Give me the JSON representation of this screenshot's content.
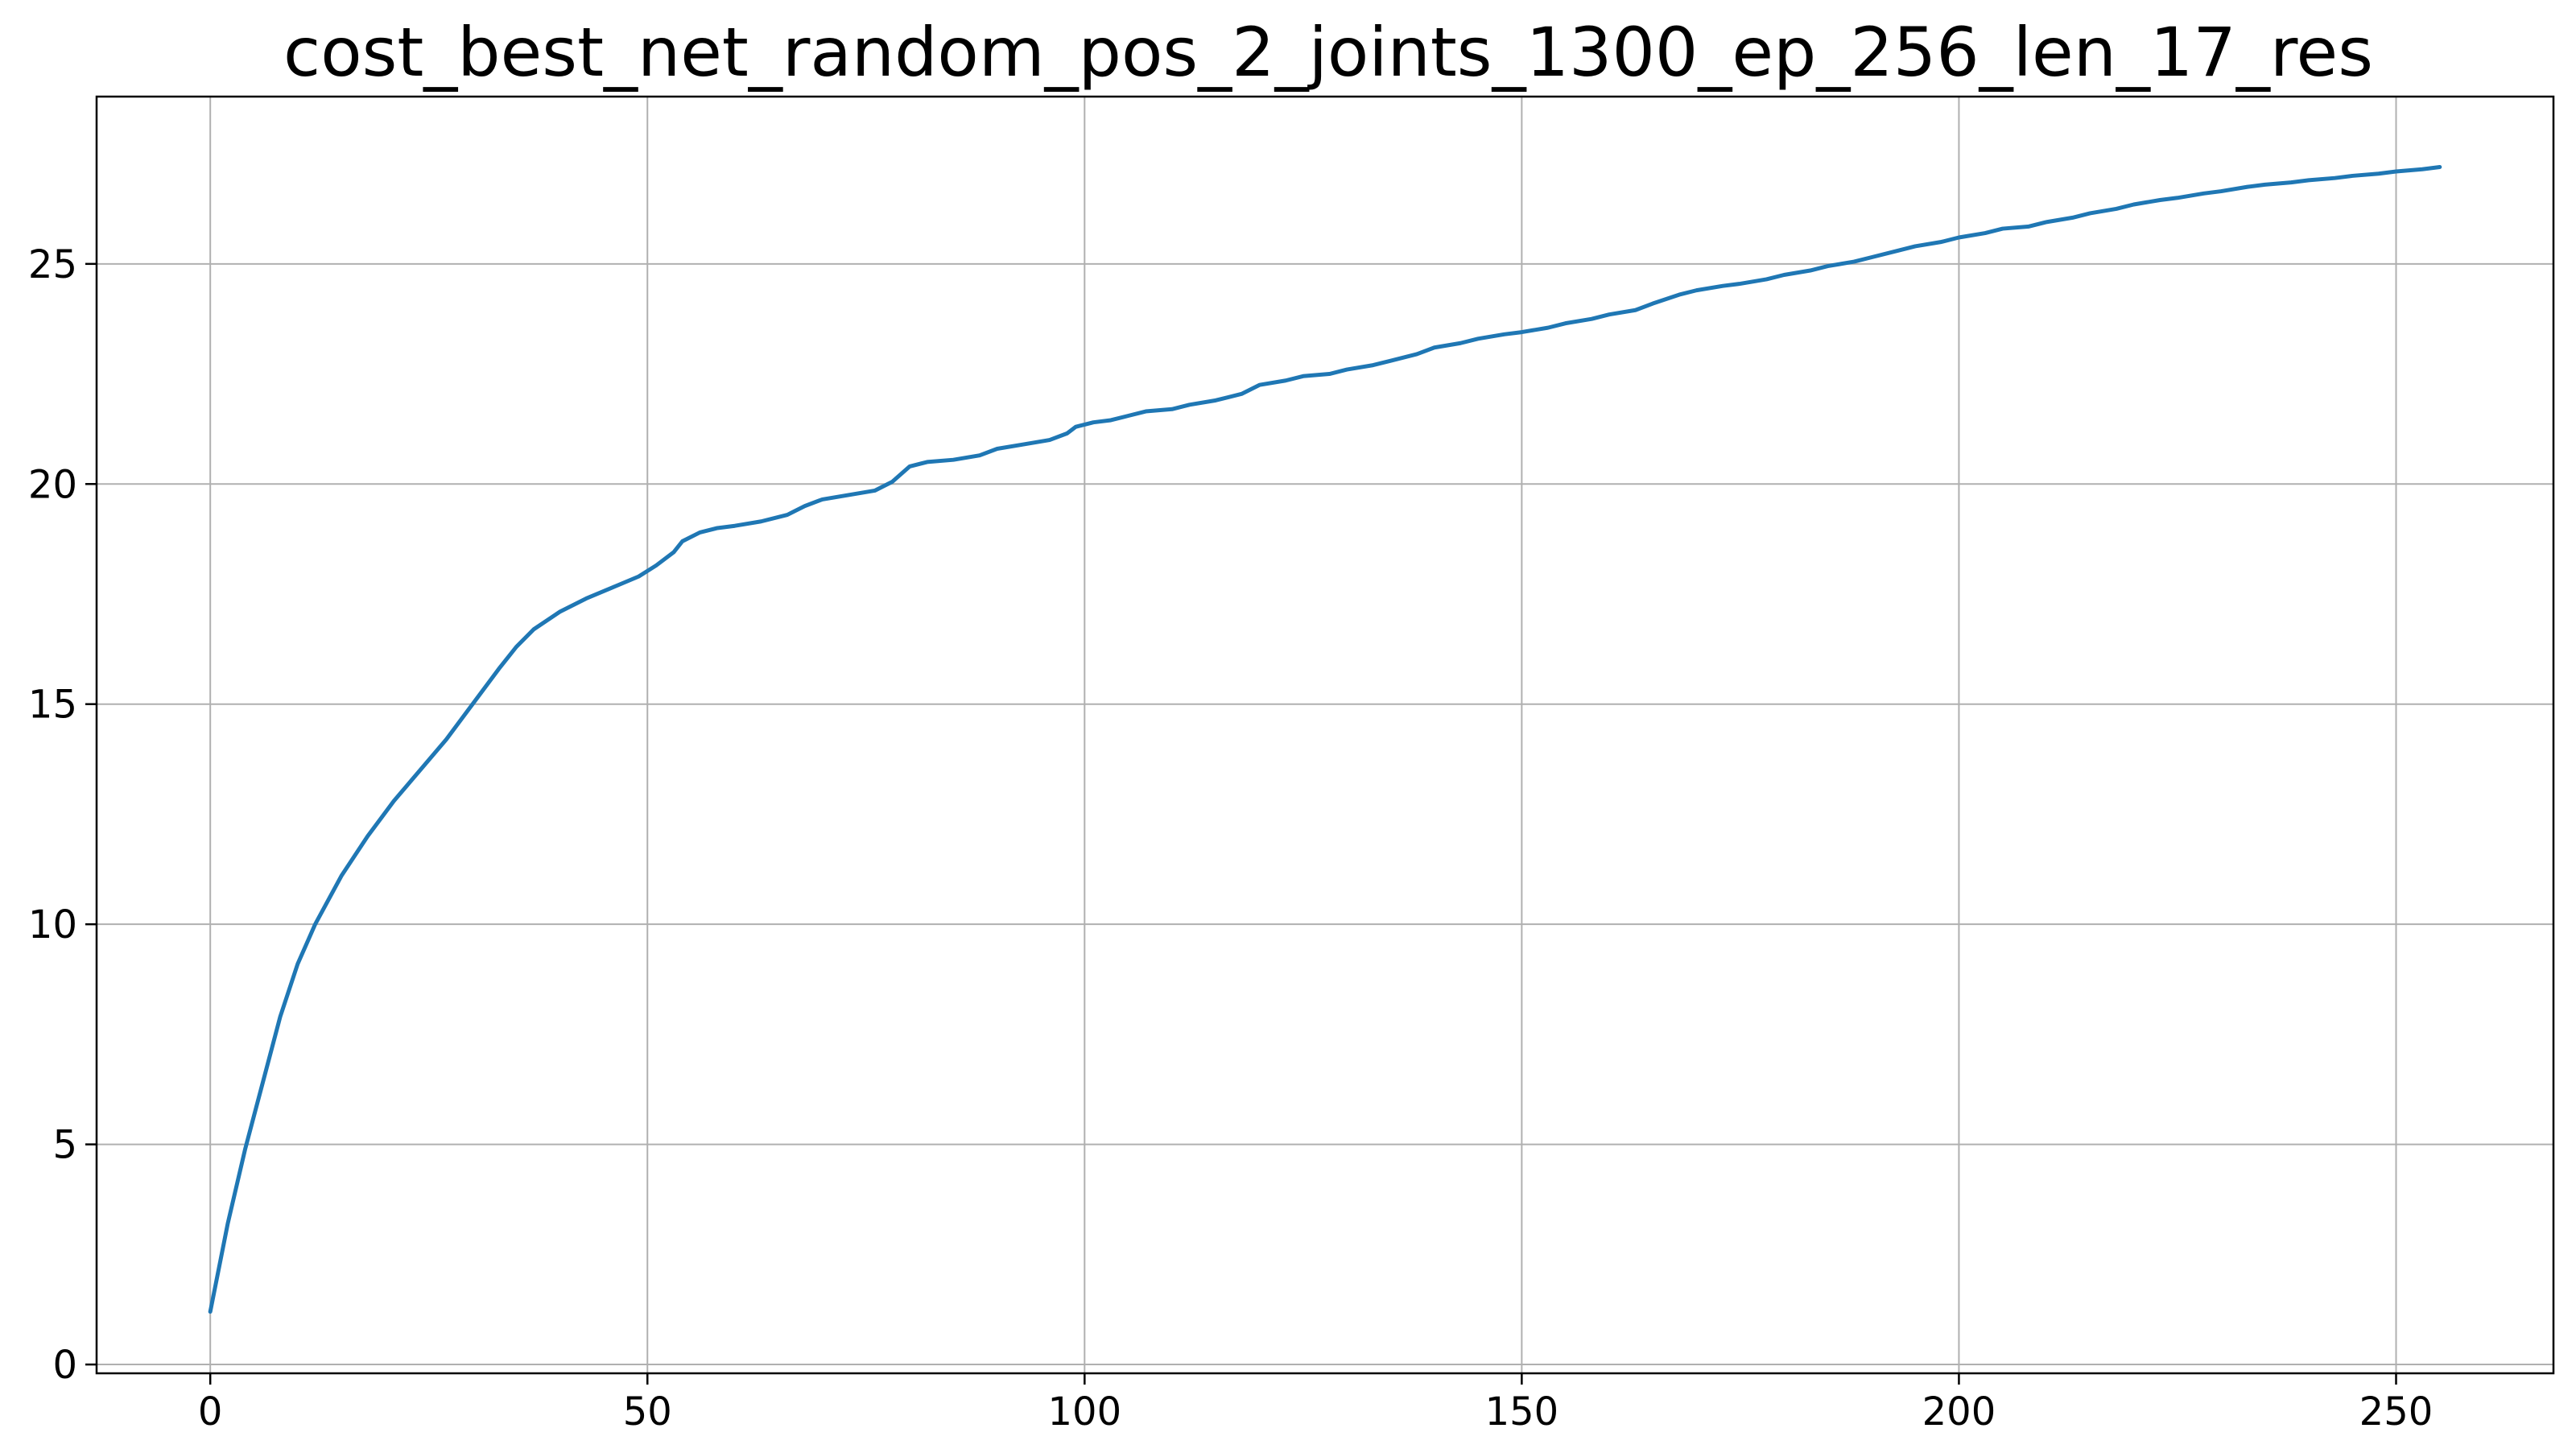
{
  "chart_data": {
    "type": "line",
    "title": "cost_best_net_random_pos_2_joints_1300_ep_256_len_17_res",
    "xlabel": "",
    "ylabel": "",
    "xlim": [
      -13,
      268
    ],
    "ylim": [
      -0.2,
      28.8
    ],
    "xticks": [
      0,
      50,
      100,
      150,
      200,
      250
    ],
    "yticks": [
      0,
      5,
      10,
      15,
      20,
      25
    ],
    "grid": true,
    "legend": "none",
    "series": [
      {
        "color": "#1f77b4",
        "x": [
          0,
          2,
          4,
          6,
          8,
          10,
          12,
          15,
          18,
          21,
          24,
          27,
          30,
          33,
          35,
          37,
          40,
          43,
          46,
          49,
          51,
          53,
          54,
          56,
          58,
          60,
          63,
          66,
          68,
          70,
          73,
          76,
          78,
          80,
          82,
          85,
          88,
          90,
          93,
          96,
          98,
          99,
          101,
          103,
          105,
          107,
          110,
          112,
          115,
          118,
          120,
          123,
          125,
          128,
          130,
          133,
          135,
          138,
          140,
          143,
          145,
          148,
          150,
          153,
          155,
          158,
          160,
          163,
          165,
          168,
          170,
          173,
          175,
          178,
          180,
          183,
          185,
          188,
          190,
          193,
          195,
          198,
          200,
          203,
          205,
          208,
          210,
          213,
          215,
          218,
          220,
          223,
          225,
          228,
          230,
          233,
          235,
          238,
          240,
          243,
          245,
          248,
          250,
          253,
          255
        ],
        "y": [
          1.2,
          3.2,
          4.9,
          6.4,
          7.9,
          9.1,
          10.0,
          11.1,
          12.0,
          12.8,
          13.5,
          14.2,
          15.0,
          15.8,
          16.3,
          16.7,
          17.1,
          17.4,
          17.65,
          17.9,
          18.15,
          18.45,
          18.7,
          18.9,
          19.0,
          19.05,
          19.15,
          19.3,
          19.5,
          19.65,
          19.75,
          19.85,
          20.05,
          20.4,
          20.5,
          20.55,
          20.65,
          20.8,
          20.9,
          21.0,
          21.15,
          21.3,
          21.4,
          21.45,
          21.55,
          21.65,
          21.7,
          21.8,
          21.9,
          22.05,
          22.25,
          22.35,
          22.45,
          22.5,
          22.6,
          22.7,
          22.8,
          22.95,
          23.1,
          23.2,
          23.3,
          23.4,
          23.45,
          23.55,
          23.65,
          23.75,
          23.85,
          23.95,
          24.1,
          24.3,
          24.4,
          24.5,
          24.55,
          24.65,
          24.75,
          24.85,
          24.95,
          25.05,
          25.15,
          25.3,
          25.4,
          25.5,
          25.6,
          25.7,
          25.8,
          25.85,
          25.95,
          26.05,
          26.15,
          26.25,
          26.35,
          26.45,
          26.5,
          26.6,
          26.65,
          26.75,
          26.8,
          26.85,
          26.9,
          26.95,
          27.0,
          27.05,
          27.1,
          27.15,
          27.2
        ]
      }
    ]
  }
}
